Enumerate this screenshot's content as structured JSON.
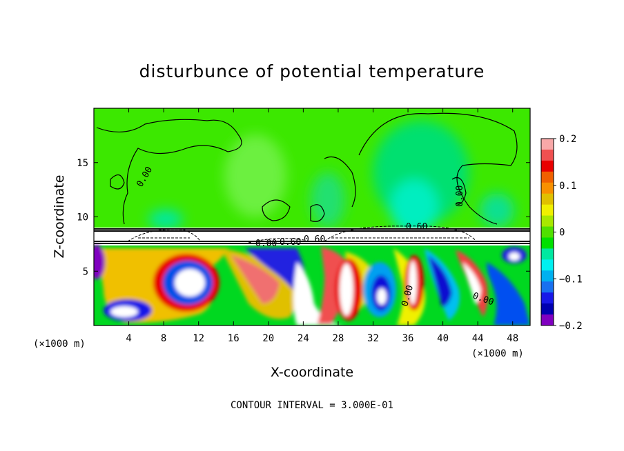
{
  "chart_data": {
    "type": "heatmap",
    "title": "disturbunce of potential temperature",
    "xlabel": "X-coordinate",
    "ylabel": "Z-coordinate",
    "x_unit_label_left": "(×1000 m)",
    "x_unit_label_right": "(×1000 m)",
    "xlim": [
      0,
      50
    ],
    "ylim": [
      0,
      20
    ],
    "x_ticks": [
      4,
      8,
      12,
      16,
      20,
      24,
      28,
      32,
      36,
      40,
      44,
      48
    ],
    "y_ticks": [
      5,
      10,
      15
    ],
    "colorbar": {
      "range": [
        -0.2,
        0.2
      ],
      "tick_labels": [
        "0.2",
        "0.1",
        "0",
        "−0.1",
        "−0.2"
      ],
      "tick_values": [
        0.2,
        0.1,
        0,
        -0.1,
        -0.2
      ],
      "colors": [
        "#f8a8a8",
        "#f05050",
        "#e80000",
        "#f06000",
        "#f89000",
        "#e0c000",
        "#f0f000",
        "#a8e800",
        "#50e000",
        "#00e000",
        "#00e8a0",
        "#00f0f0",
        "#00b0f0",
        "#1870f0",
        "#1818e8",
        "#0000b0",
        "#8000c0"
      ]
    },
    "contour_labels": [
      "0.00",
      "0.00",
      "0.00",
      "0.60",
      "0.60",
      "0.60",
      "0.00",
      "0.00"
    ],
    "footer": "CONTOUR INTERVAL = 3.000E-01"
  }
}
